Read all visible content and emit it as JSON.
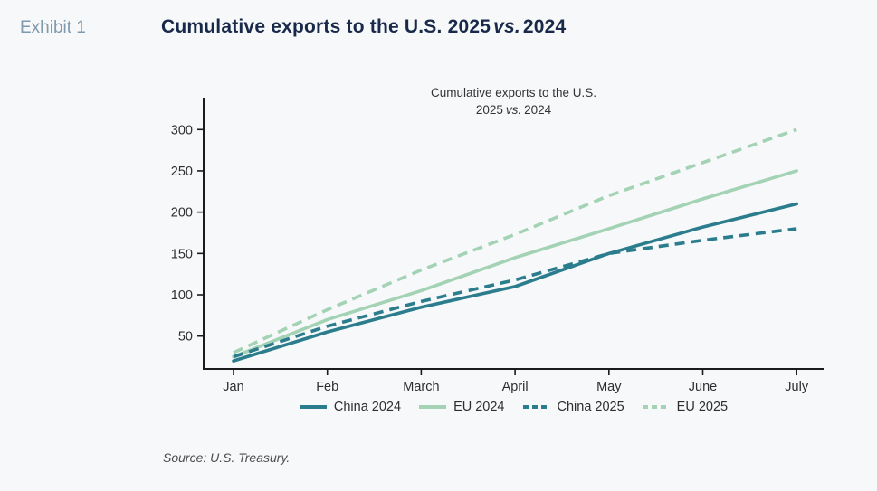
{
  "page": {
    "background": "#f6f8f9"
  },
  "header": {
    "exhibit_label": "Exhibit 1",
    "title_prefix": "Cumulative exports to the U.S. 2025",
    "title_vs": "vs.",
    "title_suffix": "2024"
  },
  "source": {
    "text": "Source: U.S. Treasury."
  },
  "chart_data": {
    "type": "line",
    "title_line1": "Cumulative exports to the U.S.",
    "title_line2_prefix": "2025",
    "title_line2_vs": "vs.",
    "title_line2_suffix": "2024",
    "categories": [
      "Jan",
      "Feb",
      "March",
      "April",
      "May",
      "June",
      "July"
    ],
    "y_ticks": [
      50,
      100,
      150,
      200,
      250,
      300
    ],
    "ylim": [
      10,
      330
    ],
    "grid": false,
    "legend_position": "bottom",
    "axis_color": "#1b1b1b",
    "series": [
      {
        "name": "China 2024",
        "style": "solid",
        "color": "#2b7d8d",
        "values": [
          20,
          55,
          85,
          110,
          150,
          182,
          210
        ]
      },
      {
        "name": "EU 2024",
        "style": "solid",
        "color": "#a3d3b4",
        "values": [
          25,
          70,
          105,
          145,
          180,
          216,
          250
        ]
      },
      {
        "name": "China 2025",
        "style": "dashed",
        "color": "#2b7d8d",
        "values": [
          25,
          62,
          92,
          118,
          150,
          166,
          180
        ]
      },
      {
        "name": "EU 2025",
        "style": "dashed",
        "color": "#a3d3b4",
        "values": [
          30,
          82,
          130,
          173,
          220,
          260,
          300
        ]
      }
    ]
  }
}
